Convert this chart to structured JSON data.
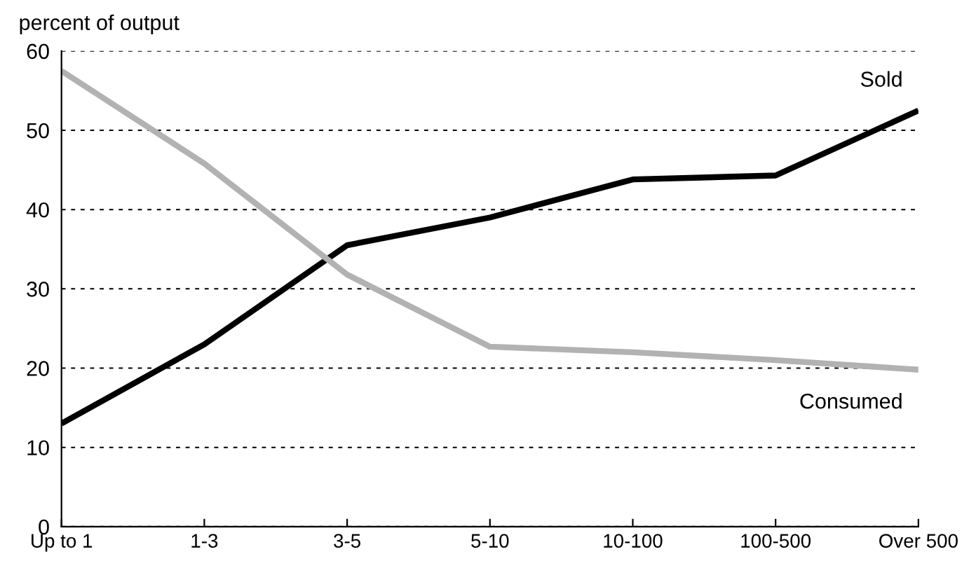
{
  "chart_data": {
    "type": "line",
    "ylabel": "percent of output",
    "categories": [
      "Up to 1",
      "1-3",
      "3-5",
      "5-10",
      "10-100",
      "100-500",
      "Over 500"
    ],
    "series": [
      {
        "name": "Sold",
        "color": "#000000",
        "values": [
          13,
          23,
          35.5,
          39,
          43.8,
          44.3,
          52.5
        ]
      },
      {
        "name": "Consumed",
        "color": "#b2b2b2",
        "values": [
          57.5,
          45.8,
          31.8,
          22.7,
          22,
          21,
          19.8
        ]
      }
    ],
    "ylim": [
      0,
      60
    ],
    "yticks": [
      0,
      10,
      20,
      30,
      40,
      50,
      60
    ],
    "grid": "y",
    "legend": false,
    "marker": "none",
    "line_style": "solid"
  }
}
